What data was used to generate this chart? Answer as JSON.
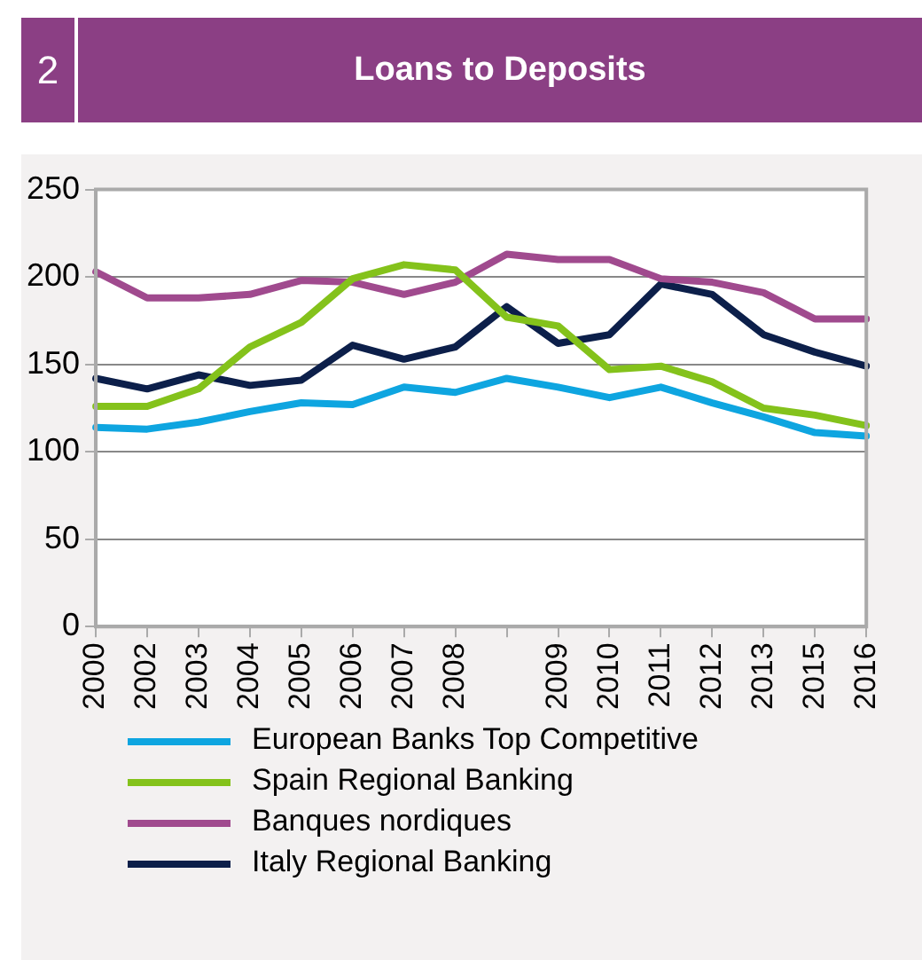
{
  "chart_data": {
    "type": "line",
    "title": "Loans to Deposits",
    "annotations": [
      "2"
    ],
    "categories": [
      "2000",
      "2002",
      "2003",
      "2004",
      "2005",
      "2006",
      "2007",
      "2008",
      null,
      "2009",
      "2010",
      "2011",
      "2012",
      "2013",
      "2015",
      "2016"
    ],
    "series": [
      {
        "name": "European Banks Top Competitive",
        "color": "#0ea5e0",
        "values": [
          114,
          113,
          117,
          123,
          128,
          127,
          137,
          134,
          142,
          137,
          131,
          137,
          128,
          120,
          111,
          109
        ]
      },
      {
        "name": "Spain Regional Banking",
        "color": "#84c21b",
        "values": [
          126,
          126,
          136,
          160,
          174,
          199,
          207,
          204,
          177,
          172,
          147,
          149,
          140,
          125,
          121,
          115
        ]
      },
      {
        "name": "Banques nordiques",
        "color": "#a04a8e",
        "values": [
          203,
          188,
          188,
          190,
          198,
          197,
          190,
          197,
          213,
          210,
          210,
          199,
          197,
          191,
          176,
          176
        ]
      },
      {
        "name": "Italy Regional Banking",
        "color": "#0c1f4a",
        "values": [
          142,
          136,
          144,
          138,
          141,
          161,
          153,
          160,
          183,
          162,
          167,
          196,
          190,
          167,
          157,
          149
        ]
      }
    ],
    "ylim": [
      0,
      250
    ],
    "yticks": [
      0,
      50,
      100,
      150,
      200,
      250
    ],
    "grid": "y",
    "legend": "bottom",
    "marker": "none",
    "line_style": "solid"
  }
}
